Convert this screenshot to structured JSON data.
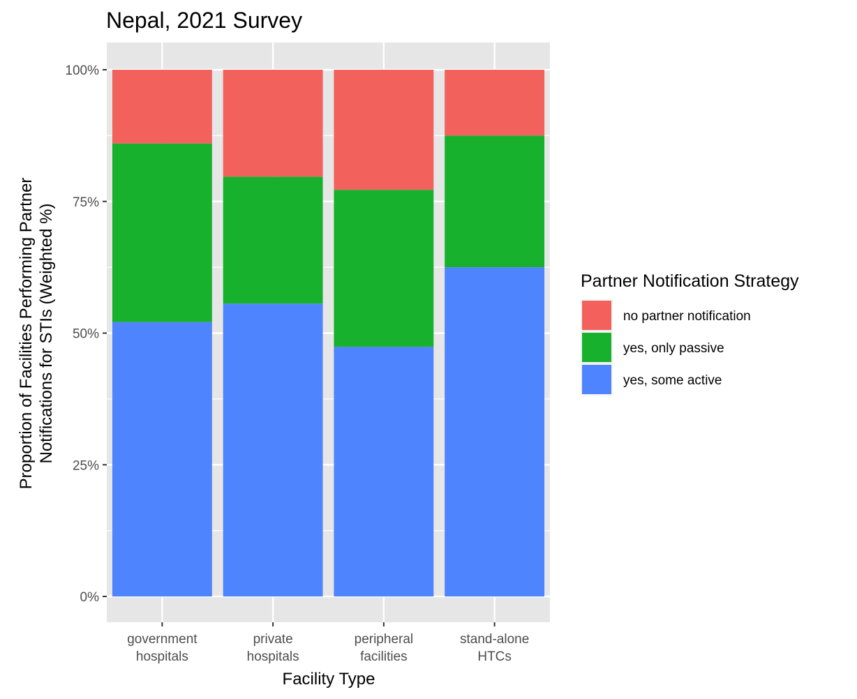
{
  "chart_data": {
    "type": "bar",
    "stacked": true,
    "title": "Nepal, 2021 Survey",
    "xlabel": "Facility Type",
    "ylabel_lines": [
      "Proportion of Facilities Performing Partner",
      "Notifications for STIs (Weighted %)"
    ],
    "categories": [
      [
        "government",
        "hospitals"
      ],
      [
        "private",
        "hospitals"
      ],
      [
        "peripheral",
        "facilities"
      ],
      [
        "stand-alone",
        "HTCs"
      ]
    ],
    "ylim": [
      0,
      1
    ],
    "yticks": [
      {
        "value": 0,
        "label": "0%"
      },
      {
        "value": 0.25,
        "label": "25%"
      },
      {
        "value": 0.5,
        "label": "50%"
      },
      {
        "value": 0.75,
        "label": "75%"
      },
      {
        "value": 1,
        "label": "100%"
      }
    ],
    "grid": true,
    "legend_position": "right",
    "legend_title": "Partner Notification Strategy",
    "series": [
      {
        "name": "yes, some active",
        "color": "#4F84FF",
        "values": [
          0.521,
          0.556,
          0.474,
          0.625
        ]
      },
      {
        "name": "yes, only passive",
        "color": "#18B12E",
        "values": [
          0.339,
          0.241,
          0.298,
          0.25
        ]
      },
      {
        "name": "no partner notification",
        "color": "#F3615D",
        "values": [
          0.14,
          0.203,
          0.228,
          0.125
        ]
      }
    ],
    "legend_order": [
      "no partner notification",
      "yes, only passive",
      "yes, some active"
    ],
    "panel_background": "#E6E6E6",
    "gridline_color": "#FFFFFF"
  }
}
